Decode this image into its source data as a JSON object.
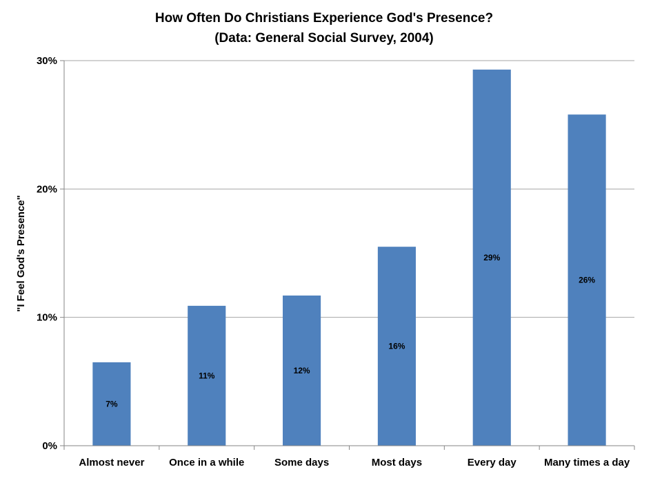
{
  "chart_data": {
    "type": "bar",
    "title_lines": [
      "How Often Do Christians Experience God's Presence?",
      "(Data: General Social Survey, 2004)"
    ],
    "xlabel": "",
    "ylabel": "\"I Feel God's Presence\"",
    "categories": [
      "Almost never",
      "Once in a while",
      "Some days",
      "Most days",
      "Every day",
      "Many times a day"
    ],
    "values": [
      6.5,
      10.9,
      11.7,
      15.5,
      29.3,
      25.8
    ],
    "data_labels": [
      "7%",
      "11%",
      "12%",
      "16%",
      "29%",
      "26%"
    ],
    "ylim": [
      0,
      30
    ],
    "yticks": [
      0,
      10,
      20,
      30
    ],
    "ytick_labels": [
      "0%",
      "10%",
      "20%",
      "30%"
    ],
    "grid": "horizontal",
    "legend": "none",
    "colors": {
      "bar": "#4f81bd",
      "grid": "#a6a6a6",
      "axis": "#868686"
    }
  }
}
